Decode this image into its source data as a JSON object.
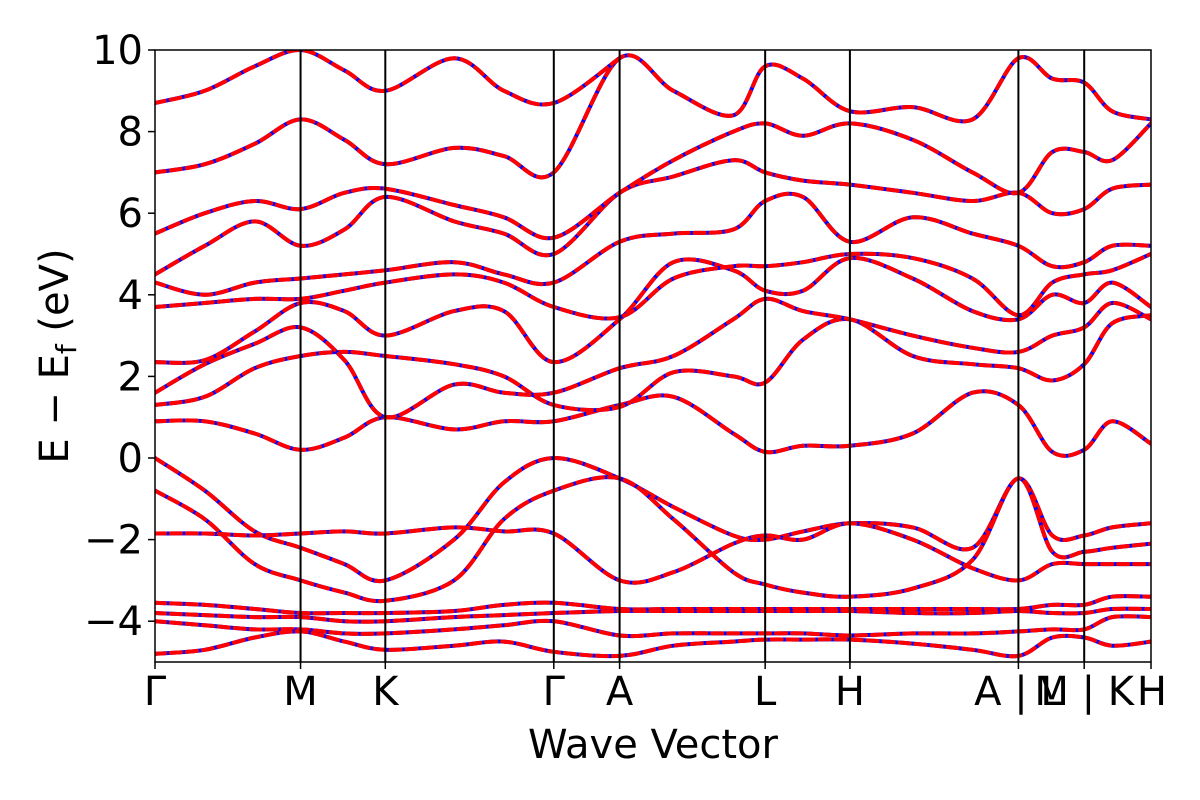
{
  "chart_data": {
    "type": "line",
    "title": "",
    "xlabel": "Wave Vector",
    "ylabel": "E − E",
    "ylabel_sub": "f",
    "ylabel_unit": " (eV)",
    "ylim": [
      -5,
      10
    ],
    "yticks": [
      -4,
      -2,
      0,
      2,
      4,
      6,
      8,
      10
    ],
    "ytick_labels": [
      "−4",
      "−2",
      "0",
      "2",
      "4",
      "6",
      "8",
      "10"
    ],
    "kpath": [
      {
        "label": "Γ",
        "x": 0.0
      },
      {
        "label": "M",
        "x": 0.146
      },
      {
        "label": "K",
        "x": 0.231
      },
      {
        "label": "Γ",
        "x": 0.4
      },
      {
        "label": "A",
        "x": 0.466
      },
      {
        "label": "L",
        "x": 0.612
      },
      {
        "label": "H",
        "x": 0.697
      },
      {
        "label": "A | L",
        "x": 0.866
      },
      {
        "label": "M | K",
        "x": 0.932
      },
      {
        "label": "H",
        "x": 0.999
      }
    ],
    "xlim": [
      0,
      0.999
    ],
    "grid": false,
    "legend": "none",
    "line_colors": {
      "dashed_overlay": "#0000ff",
      "solid": "#ff0000"
    },
    "series": [
      {
        "x": [
          0,
          0.05,
          0.1,
          0.146,
          0.19,
          0.231,
          0.3,
          0.35,
          0.4,
          0.466,
          0.52,
          0.58,
          0.612,
          0.65,
          0.697,
          0.76,
          0.82,
          0.866,
          0.9,
          0.932,
          0.96,
          0.999
        ],
        "values": [
          0.0,
          -0.8,
          -1.8,
          -2.2,
          -2.6,
          -3.0,
          -2.0,
          -0.6,
          0.0,
          -0.5,
          -1.2,
          -1.9,
          -2.0,
          -1.8,
          -1.6,
          -1.7,
          -2.2,
          -0.5,
          -1.9,
          -1.9,
          -1.7,
          -1.6
        ]
      },
      {
        "x": [
          0,
          0.05,
          0.1,
          0.146,
          0.19,
          0.231,
          0.3,
          0.35,
          0.4,
          0.466,
          0.52,
          0.58,
          0.612,
          0.65,
          0.697,
          0.76,
          0.82,
          0.866,
          0.9,
          0.932,
          0.96,
          0.999
        ],
        "values": [
          -0.8,
          -1.5,
          -2.6,
          -3.0,
          -3.3,
          -3.5,
          -3.0,
          -1.5,
          -0.8,
          -0.5,
          -1.5,
          -2.8,
          -3.1,
          -3.3,
          -3.4,
          -3.2,
          -2.5,
          -0.5,
          -2.3,
          -2.3,
          -2.2,
          -2.1
        ]
      },
      {
        "x": [
          0,
          0.05,
          0.1,
          0.146,
          0.19,
          0.231,
          0.3,
          0.35,
          0.4,
          0.466,
          0.52,
          0.58,
          0.612,
          0.65,
          0.697,
          0.76,
          0.82,
          0.866,
          0.9,
          0.932,
          0.96,
          0.999
        ],
        "values": [
          -1.85,
          -1.85,
          -1.9,
          -1.85,
          -1.8,
          -1.85,
          -1.7,
          -1.8,
          -1.85,
          -3.0,
          -2.8,
          -2.1,
          -1.9,
          -2.0,
          -1.6,
          -2.0,
          -2.7,
          -3.0,
          -2.6,
          -2.6,
          -2.6,
          -2.6
        ]
      },
      {
        "x": [
          0,
          0.05,
          0.1,
          0.146,
          0.19,
          0.231,
          0.3,
          0.35,
          0.4,
          0.466,
          0.52,
          0.58,
          0.612,
          0.65,
          0.697,
          0.76,
          0.82,
          0.866,
          0.9,
          0.932,
          0.96,
          0.999
        ],
        "values": [
          0.9,
          0.9,
          0.6,
          0.2,
          0.5,
          1.0,
          0.7,
          0.9,
          0.9,
          1.3,
          1.5,
          0.6,
          0.15,
          0.3,
          0.3,
          0.6,
          1.6,
          1.3,
          0.15,
          0.2,
          0.9,
          0.35
        ]
      },
      {
        "x": [
          0,
          0.05,
          0.1,
          0.146,
          0.19,
          0.231,
          0.3,
          0.35,
          0.4,
          0.466,
          0.52,
          0.58,
          0.612,
          0.65,
          0.697,
          0.76,
          0.82,
          0.866,
          0.9,
          0.932,
          0.96,
          0.999
        ],
        "values": [
          1.3,
          1.5,
          2.2,
          2.5,
          2.6,
          2.5,
          2.3,
          2.0,
          1.3,
          1.25,
          2.1,
          2.0,
          1.85,
          2.9,
          3.4,
          2.5,
          2.3,
          2.2,
          1.9,
          2.3,
          3.3,
          3.5
        ]
      },
      {
        "x": [
          0,
          0.05,
          0.1,
          0.146,
          0.19,
          0.231,
          0.3,
          0.35,
          0.4,
          0.466,
          0.52,
          0.58,
          0.612,
          0.65,
          0.697,
          0.76,
          0.82,
          0.866,
          0.9,
          0.932,
          0.96,
          0.999
        ],
        "values": [
          1.6,
          2.3,
          2.8,
          3.2,
          2.4,
          1.0,
          1.8,
          1.6,
          1.6,
          2.2,
          2.5,
          3.4,
          3.9,
          3.6,
          3.4,
          3.0,
          2.7,
          2.6,
          3.0,
          3.2,
          3.8,
          3.4
        ]
      },
      {
        "x": [
          0,
          0.05,
          0.1,
          0.146,
          0.19,
          0.231,
          0.3,
          0.35,
          0.4,
          0.466,
          0.52,
          0.58,
          0.612,
          0.65,
          0.697,
          0.76,
          0.82,
          0.866,
          0.9,
          0.932,
          0.96,
          0.999
        ],
        "values": [
          2.35,
          2.4,
          3.1,
          3.8,
          3.6,
          3.0,
          3.6,
          3.6,
          2.35,
          3.4,
          4.8,
          4.6,
          4.1,
          4.1,
          4.9,
          4.4,
          3.6,
          3.4,
          4.0,
          3.8,
          4.3,
          3.7
        ]
      },
      {
        "x": [
          0,
          0.05,
          0.1,
          0.146,
          0.19,
          0.231,
          0.3,
          0.35,
          0.4,
          0.466,
          0.52,
          0.58,
          0.612,
          0.65,
          0.697,
          0.76,
          0.82,
          0.866,
          0.9,
          0.932,
          0.96,
          0.999
        ],
        "values": [
          3.7,
          3.8,
          3.9,
          3.9,
          4.1,
          4.3,
          4.5,
          4.3,
          3.7,
          3.45,
          4.4,
          4.7,
          4.7,
          4.8,
          5.0,
          4.9,
          4.4,
          3.5,
          4.3,
          4.5,
          4.6,
          5.0
        ]
      },
      {
        "x": [
          0,
          0.05,
          0.1,
          0.146,
          0.19,
          0.231,
          0.3,
          0.35,
          0.4,
          0.466,
          0.52,
          0.58,
          0.612,
          0.65,
          0.697,
          0.76,
          0.82,
          0.866,
          0.9,
          0.932,
          0.96,
          0.999
        ],
        "values": [
          4.3,
          4.0,
          4.3,
          4.4,
          4.5,
          4.6,
          4.8,
          4.5,
          4.3,
          5.3,
          5.5,
          5.6,
          6.3,
          6.4,
          5.3,
          5.9,
          5.5,
          5.2,
          4.7,
          4.8,
          5.2,
          5.2
        ]
      },
      {
        "x": [
          0,
          0.05,
          0.1,
          0.146,
          0.19,
          0.231,
          0.3,
          0.35,
          0.4,
          0.466,
          0.52,
          0.58,
          0.612,
          0.65,
          0.697,
          0.76,
          0.82,
          0.866,
          0.9,
          0.932,
          0.96,
          0.999
        ],
        "values": [
          4.5,
          5.2,
          5.8,
          5.2,
          5.6,
          6.4,
          5.8,
          5.5,
          5.0,
          6.5,
          6.9,
          7.3,
          7.0,
          6.8,
          6.7,
          6.5,
          6.3,
          6.5,
          6.0,
          6.1,
          6.6,
          6.7
        ]
      },
      {
        "x": [
          0,
          0.05,
          0.1,
          0.146,
          0.19,
          0.231,
          0.3,
          0.35,
          0.4,
          0.466,
          0.52,
          0.58,
          0.612,
          0.65,
          0.697,
          0.76,
          0.82,
          0.866,
          0.9,
          0.932,
          0.96,
          0.999
        ],
        "values": [
          5.5,
          6.0,
          6.3,
          6.1,
          6.5,
          6.6,
          6.2,
          5.9,
          5.4,
          6.5,
          7.3,
          8.0,
          8.2,
          7.9,
          8.2,
          7.8,
          7.0,
          6.5,
          7.5,
          7.5,
          7.3,
          8.2
        ]
      },
      {
        "x": [
          0,
          0.05,
          0.1,
          0.146,
          0.19,
          0.231,
          0.3,
          0.35,
          0.4,
          0.466,
          0.52,
          0.58,
          0.612,
          0.65,
          0.697,
          0.76,
          0.82,
          0.866,
          0.9,
          0.932,
          0.96,
          0.999
        ],
        "values": [
          7.0,
          7.2,
          7.7,
          8.3,
          7.8,
          7.2,
          7.6,
          7.4,
          7.0,
          9.8,
          9.0,
          8.4,
          9.6,
          9.3,
          8.5,
          8.6,
          8.3,
          9.8,
          9.3,
          9.2,
          8.5,
          8.3
        ]
      },
      {
        "x": [
          0,
          0.05,
          0.1,
          0.146,
          0.19,
          0.231,
          0.3,
          0.35,
          0.4,
          0.466
        ],
        "values": [
          8.7,
          9.0,
          9.6,
          10.0,
          9.5,
          9.0,
          9.8,
          9.0,
          8.7,
          9.8
        ]
      },
      {
        "x": [
          0,
          0.05,
          0.1,
          0.146,
          0.19,
          0.231,
          0.3,
          0.35,
          0.4,
          0.466,
          0.52,
          0.58,
          0.612,
          0.65,
          0.697,
          0.76,
          0.82,
          0.866,
          0.9,
          0.932,
          0.96,
          0.999
        ],
        "values": [
          -3.55,
          -3.6,
          -3.7,
          -3.8,
          -3.8,
          -3.8,
          -3.75,
          -3.6,
          -3.55,
          -3.7,
          -3.7,
          -3.7,
          -3.7,
          -3.7,
          -3.7,
          -3.7,
          -3.7,
          -3.7,
          -3.6,
          -3.6,
          -3.4,
          -3.4
        ]
      },
      {
        "x": [
          0,
          0.05,
          0.1,
          0.146,
          0.19,
          0.231,
          0.3,
          0.35,
          0.4,
          0.466,
          0.52,
          0.58,
          0.612,
          0.65,
          0.697,
          0.76,
          0.82,
          0.866,
          0.9,
          0.932,
          0.96,
          0.999
        ],
        "values": [
          -3.8,
          -3.85,
          -3.9,
          -3.9,
          -4.0,
          -4.0,
          -3.9,
          -3.85,
          -3.8,
          -3.75,
          -3.75,
          -3.75,
          -3.75,
          -3.75,
          -3.75,
          -3.8,
          -3.8,
          -3.75,
          -3.8,
          -3.8,
          -3.7,
          -3.7
        ]
      },
      {
        "x": [
          0,
          0.05,
          0.1,
          0.146,
          0.19,
          0.231,
          0.3,
          0.35,
          0.4,
          0.466,
          0.52,
          0.58,
          0.612,
          0.65,
          0.697,
          0.76,
          0.82,
          0.866,
          0.9,
          0.932,
          0.96,
          0.999
        ],
        "values": [
          -4.0,
          -4.1,
          -4.2,
          -4.2,
          -4.3,
          -4.3,
          -4.2,
          -4.1,
          -4.0,
          -4.35,
          -4.3,
          -4.3,
          -4.3,
          -4.3,
          -4.35,
          -4.3,
          -4.3,
          -4.25,
          -4.2,
          -4.2,
          -3.9,
          -3.9
        ]
      },
      {
        "x": [
          0,
          0.05,
          0.1,
          0.146,
          0.19,
          0.231,
          0.3,
          0.35,
          0.4,
          0.466,
          0.52,
          0.58,
          0.612,
          0.65,
          0.697,
          0.76,
          0.82,
          0.866,
          0.9,
          0.932,
          0.96,
          0.999
        ],
        "values": [
          -4.8,
          -4.7,
          -4.4,
          -4.25,
          -4.5,
          -4.7,
          -4.6,
          -4.5,
          -4.75,
          -4.85,
          -4.6,
          -4.5,
          -4.45,
          -4.45,
          -4.45,
          -4.55,
          -4.7,
          -4.85,
          -4.4,
          -4.4,
          -4.6,
          -4.5
        ]
      }
    ]
  }
}
